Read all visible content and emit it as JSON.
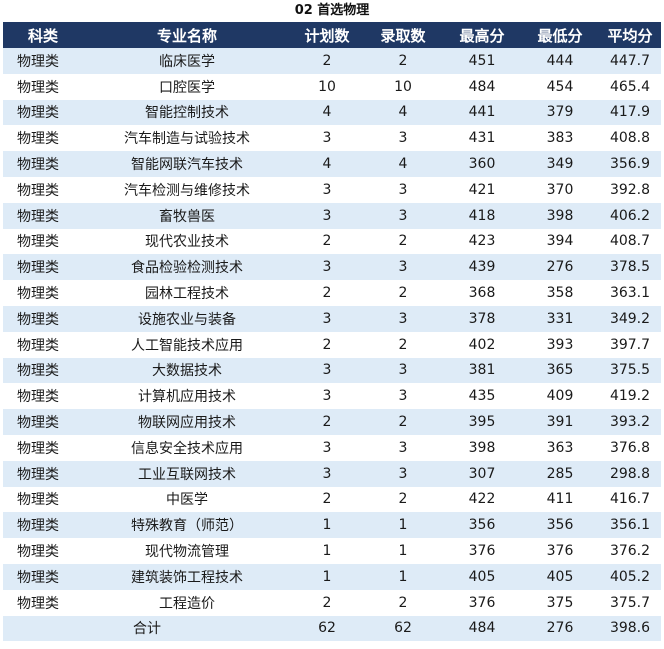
{
  "title": "02 首选物理",
  "colors": {
    "header_bg": "#1f3864",
    "header_text": "#ffffff",
    "alt_row_bg": "#deebf7",
    "row_bg": "#ffffff"
  },
  "table": {
    "headers": [
      "科类",
      "专业名称",
      "计划数",
      "录取数",
      "最高分",
      "最低分",
      "平均分"
    ],
    "rows": [
      [
        "物理类",
        "临床医学",
        "2",
        "2",
        "451",
        "444",
        "447.7"
      ],
      [
        "物理类",
        "口腔医学",
        "10",
        "10",
        "484",
        "454",
        "465.4"
      ],
      [
        "物理类",
        "智能控制技术",
        "4",
        "4",
        "441",
        "379",
        "417.9"
      ],
      [
        "物理类",
        "汽车制造与试验技术",
        "3",
        "3",
        "431",
        "383",
        "408.8"
      ],
      [
        "物理类",
        "智能网联汽车技术",
        "4",
        "4",
        "360",
        "349",
        "356.9"
      ],
      [
        "物理类",
        "汽车检测与维修技术",
        "3",
        "3",
        "421",
        "370",
        "392.8"
      ],
      [
        "物理类",
        "畜牧兽医",
        "3",
        "3",
        "418",
        "398",
        "406.2"
      ],
      [
        "物理类",
        "现代农业技术",
        "2",
        "2",
        "423",
        "394",
        "408.7"
      ],
      [
        "物理类",
        "食品检验检测技术",
        "3",
        "3",
        "439",
        "276",
        "378.5"
      ],
      [
        "物理类",
        "园林工程技术",
        "2",
        "2",
        "368",
        "358",
        "363.1"
      ],
      [
        "物理类",
        "设施农业与装备",
        "3",
        "3",
        "378",
        "331",
        "349.2"
      ],
      [
        "物理类",
        "人工智能技术应用",
        "2",
        "2",
        "402",
        "393",
        "397.7"
      ],
      [
        "物理类",
        "大数据技术",
        "3",
        "3",
        "381",
        "365",
        "375.5"
      ],
      [
        "物理类",
        "计算机应用技术",
        "3",
        "3",
        "435",
        "409",
        "419.2"
      ],
      [
        "物理类",
        "物联网应用技术",
        "2",
        "2",
        "395",
        "391",
        "393.2"
      ],
      [
        "物理类",
        "信息安全技术应用",
        "3",
        "3",
        "398",
        "363",
        "376.8"
      ],
      [
        "物理类",
        "工业互联网技术",
        "3",
        "3",
        "307",
        "285",
        "298.8"
      ],
      [
        "物理类",
        "中医学",
        "2",
        "2",
        "422",
        "411",
        "416.7"
      ],
      [
        "物理类",
        "特殊教育（师范）",
        "1",
        "1",
        "356",
        "356",
        "356.1"
      ],
      [
        "物理类",
        "现代物流管理",
        "1",
        "1",
        "376",
        "376",
        "376.2"
      ],
      [
        "物理类",
        "建筑装饰工程技术",
        "1",
        "1",
        "405",
        "405",
        "405.2"
      ],
      [
        "物理类",
        "工程造价",
        "2",
        "2",
        "376",
        "375",
        "375.7"
      ]
    ],
    "total": {
      "label": "合计",
      "plan": "62",
      "admitted": "62",
      "max": "484",
      "min": "276",
      "avg": "398.6"
    }
  }
}
